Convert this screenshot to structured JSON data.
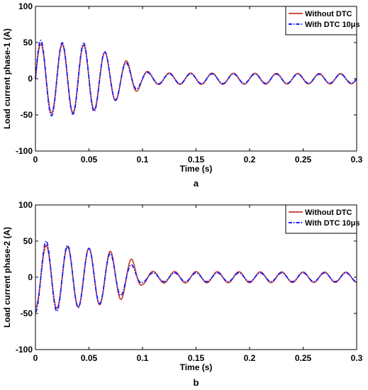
{
  "colors": {
    "without": "#c0392b",
    "with": "#1a1aff",
    "axis": "#000000"
  },
  "chart_data": [
    {
      "type": "line",
      "panel_label": "a",
      "xlabel": "Time (s)",
      "ylabel": "Load current phase-1 (A)",
      "xlim": [
        0,
        0.3
      ],
      "ylim": [
        -100,
        100
      ],
      "xticks": [
        0,
        0.05,
        0.1,
        0.15,
        0.2,
        0.25,
        0.3
      ],
      "xtick_labels": [
        "0",
        "0.05",
        "0.1",
        "0.15",
        "0.2",
        "0.25",
        "0.3"
      ],
      "yticks": [
        -100,
        -50,
        0,
        50,
        100
      ],
      "ytick_labels": [
        "-100",
        "-50",
        "0",
        "50",
        "100"
      ],
      "legend_position": "top-right",
      "grid": false,
      "frequency_hz": 50,
      "phase_deg": 0,
      "series": [
        {
          "name": "Without DTC",
          "style": "solid",
          "envelope_t": [
            0,
            0.01,
            0.03,
            0.05,
            0.07,
            0.09,
            0.1,
            0.11,
            0.3
          ],
          "envelope_amp": [
            48,
            48,
            47,
            46,
            33,
            22,
            12,
            8,
            7
          ]
        },
        {
          "name": "With DTC 10μs",
          "style": "dashdot",
          "envelope_t": [
            0,
            0.01,
            0.03,
            0.05,
            0.07,
            0.09,
            0.1,
            0.11,
            0.3
          ],
          "envelope_amp": [
            54,
            52,
            49,
            49,
            33,
            18,
            10,
            7,
            6
          ]
        }
      ]
    },
    {
      "type": "line",
      "panel_label": "b",
      "xlabel": "Time (s)",
      "ylabel": "Load current phase-2 (A)",
      "xlim": [
        0,
        0.3
      ],
      "ylim": [
        -100,
        100
      ],
      "xticks": [
        0,
        0.05,
        0.1,
        0.15,
        0.2,
        0.25,
        0.3
      ],
      "xtick_labels": [
        "0",
        "0.05",
        "0.1",
        "0.15",
        "0.2",
        "0.25",
        "0.3"
      ],
      "yticks": [
        -100,
        -50,
        0,
        50,
        100
      ],
      "ytick_labels": [
        "-100",
        "-50",
        "0",
        "50",
        "100"
      ],
      "legend_position": "top-right",
      "grid": false,
      "frequency_hz": 50,
      "phase_deg": -90,
      "series": [
        {
          "name": "Without DTC",
          "style": "solid",
          "envelope_t": [
            0,
            0.01,
            0.03,
            0.05,
            0.07,
            0.09,
            0.1,
            0.11,
            0.3
          ],
          "envelope_amp": [
            42,
            44,
            42,
            40,
            36,
            25,
            10,
            8,
            7
          ]
        },
        {
          "name": "With DTC 10μs",
          "style": "dashdot",
          "envelope_t": [
            0,
            0.01,
            0.03,
            0.05,
            0.07,
            0.09,
            0.1,
            0.11,
            0.3
          ],
          "envelope_amp": [
            48,
            50,
            44,
            40,
            33,
            17,
            7,
            6,
            6
          ]
        }
      ]
    }
  ]
}
